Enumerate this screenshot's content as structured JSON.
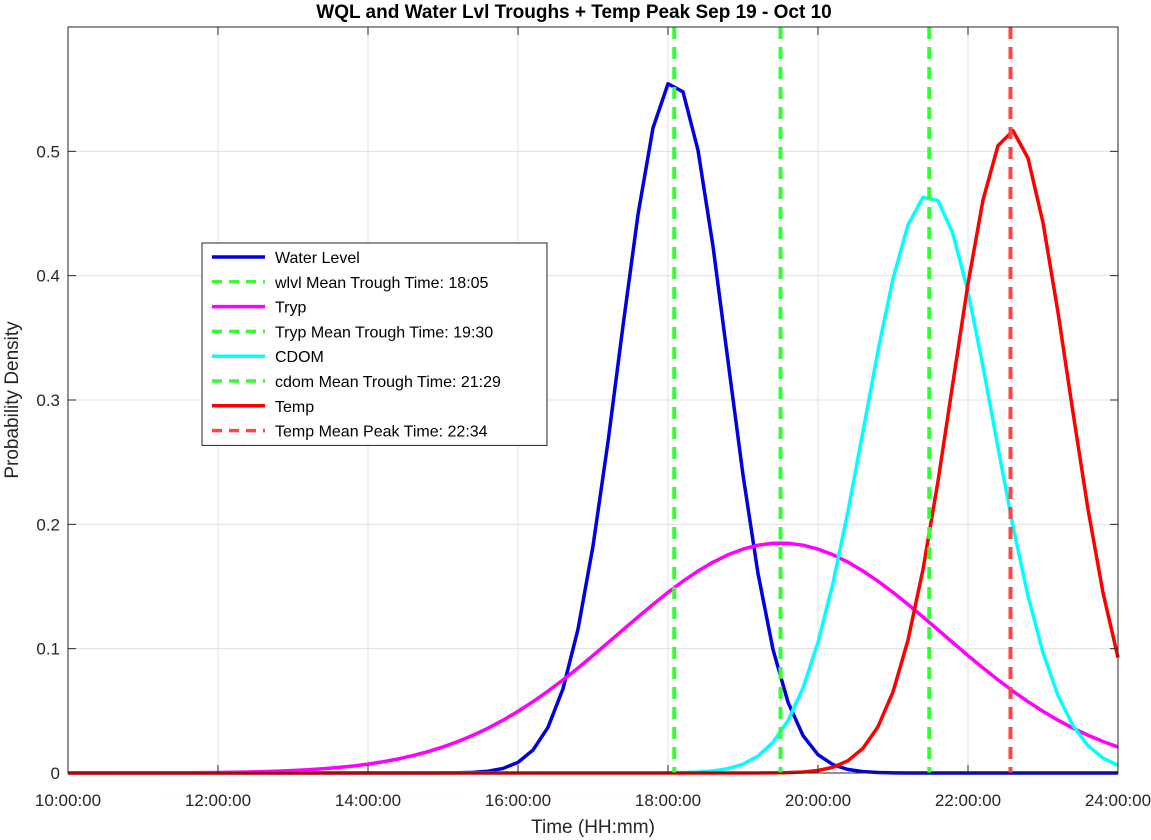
{
  "chart_data": {
    "type": "line",
    "title": "WQL and Water Lvl Troughs + Temp Peak Sep 19 - Oct 10",
    "xlabel": "Time (HH:mm)",
    "ylabel": "Probability Density",
    "xlim": [
      10,
      24
    ],
    "ylim": [
      0,
      0.6
    ],
    "grid": true,
    "legend_position": "upper-left (inside axes)",
    "x_ticks": [
      "10:00:00",
      "12:00:00",
      "14:00:00",
      "16:00:00",
      "18:00:00",
      "20:00:00",
      "22:00:00",
      "24:00:00"
    ],
    "y_ticks": [
      "0",
      "0.1",
      "0.2",
      "0.3",
      "0.4",
      "0.5"
    ],
    "x_tick_values": [
      10,
      12,
      14,
      16,
      18,
      20,
      22,
      24
    ],
    "y_tick_values": [
      0,
      0.1,
      0.2,
      0.3,
      0.4,
      0.5
    ],
    "series": [
      {
        "name": "Water Level",
        "kind": "curve",
        "color": "#0000e0",
        "mean": 18.07,
        "peak": 0.557
      },
      {
        "name": "wlvl Mean Trough Time: 18:05",
        "kind": "vline",
        "color": "#33ff33",
        "x": 18.0833
      },
      {
        "name": "Tryp",
        "kind": "curve",
        "color": "#ff00ff",
        "mean": 19.5,
        "peak": 0.185
      },
      {
        "name": "Tryp Mean Trough Time: 19:30",
        "kind": "vline",
        "color": "#33ff33",
        "x": 19.5
      },
      {
        "name": "CDOM",
        "kind": "curve",
        "color": "#00ffff",
        "mean": 21.48,
        "peak": 0.465
      },
      {
        "name": "cdom Mean Trough Time: 21:29",
        "kind": "vline",
        "color": "#33ff33",
        "x": 21.4833
      },
      {
        "name": "Temp",
        "kind": "curve",
        "color": "#ff0000",
        "mean": 22.57,
        "peak": 0.517
      },
      {
        "name": "Temp Mean Peak Time: 22:34",
        "kind": "vline",
        "color": "#ff4444",
        "x": 22.5667
      }
    ]
  }
}
